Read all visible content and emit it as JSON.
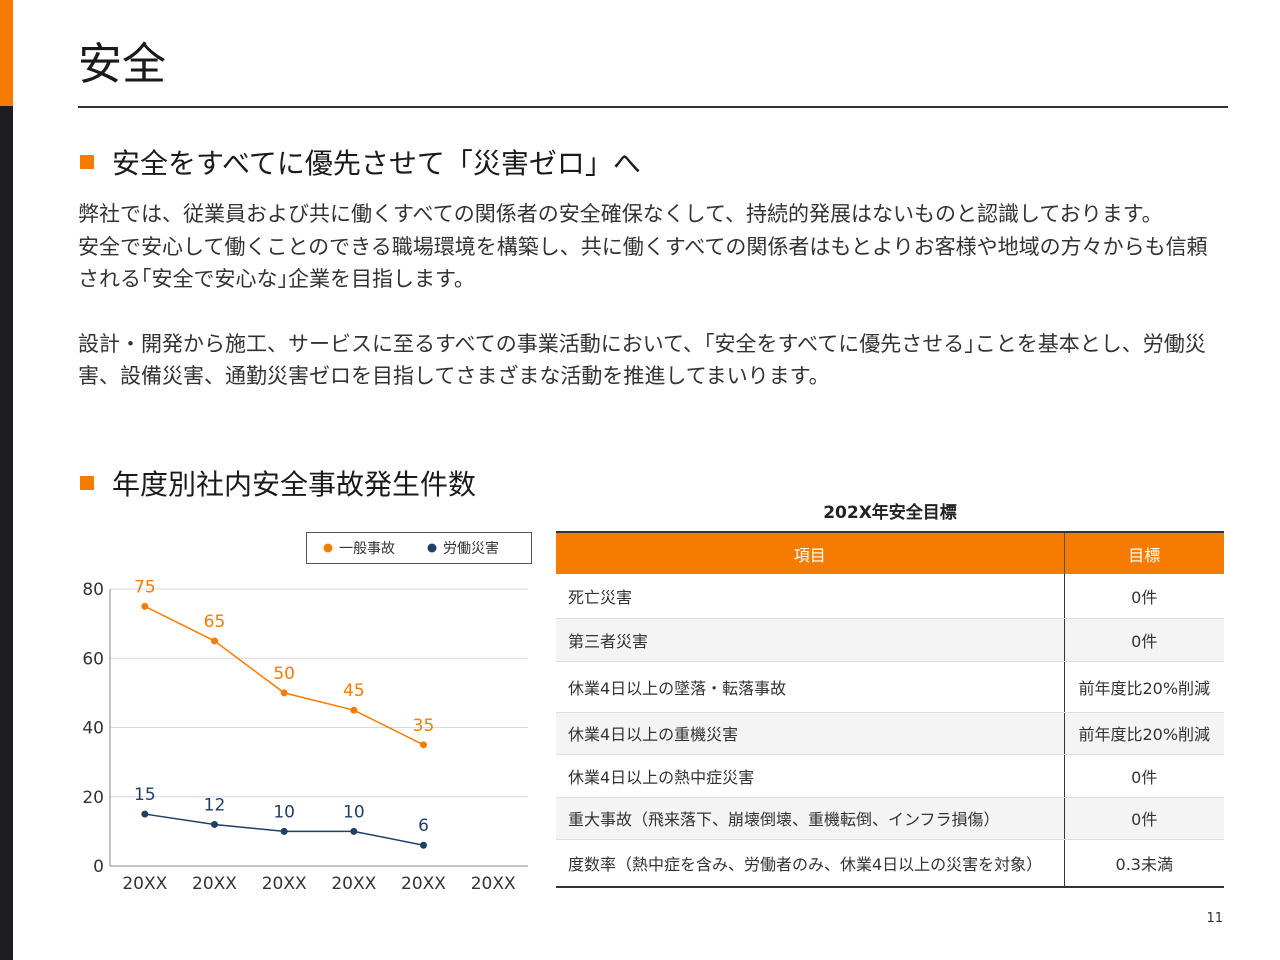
{
  "title": "安全",
  "section1": {
    "heading": "安全をすべてに優先させて「災害ゼロ」へ",
    "paragraphs": [
      "弊社では、従業員および共に働くすべての関係者の安全確保なくして、持続的発展はないものと認識しております。",
      "安全で安心して働くことのできる職場環境を構築し、共に働くすべての関係者はもとよりお客様や地域の方々からも信頼される｢安全で安心な｣企業を目指します。",
      "設計・開発から施工、サービスに至るすべての事業活動において、｢安全をすべてに優先させる｣ことを基本とし、労働災害、設備災害、通勤災害ゼロを目指してさまざまな活動を推進してまいります。"
    ]
  },
  "section2": {
    "heading": "年度別社内安全事故発生件数"
  },
  "table": {
    "title": "202X年安全目標",
    "headers": [
      "項目",
      "目標"
    ],
    "rows": [
      [
        "死亡災害",
        "0件"
      ],
      [
        "第三者災害",
        "0件"
      ],
      [
        "休業4日以上の墜落・転落事故",
        "前年度比20%削減"
      ],
      [
        "休業4日以上の重機災害",
        "前年度比20%削減"
      ],
      [
        "休業4日以上の熱中症災害",
        "0件"
      ],
      [
        "重大事故（飛来落下、崩壊倒壊、重機転倒、インフラ損傷）",
        "0件"
      ],
      [
        "度数率（熱中症を含み、労働者のみ、休業4日以上の災害を対象）",
        "0.3未満"
      ]
    ]
  },
  "page_number": "11",
  "chart_data": {
    "type": "line",
    "categories": [
      "20XX",
      "20XX",
      "20XX",
      "20XX",
      "20XX",
      "20XX"
    ],
    "series": [
      {
        "name": "一般事故",
        "values": [
          75,
          65,
          50,
          45,
          35,
          null
        ],
        "color": "#f57c00"
      },
      {
        "name": "労働災害",
        "values": [
          15,
          12,
          10,
          10,
          6,
          null
        ],
        "color": "#1f3f66"
      }
    ],
    "ylim": [
      0,
      80
    ],
    "yticks": [
      0,
      20,
      40,
      60,
      80
    ],
    "grid": true,
    "legend": "top-right",
    "data_labels": true
  }
}
